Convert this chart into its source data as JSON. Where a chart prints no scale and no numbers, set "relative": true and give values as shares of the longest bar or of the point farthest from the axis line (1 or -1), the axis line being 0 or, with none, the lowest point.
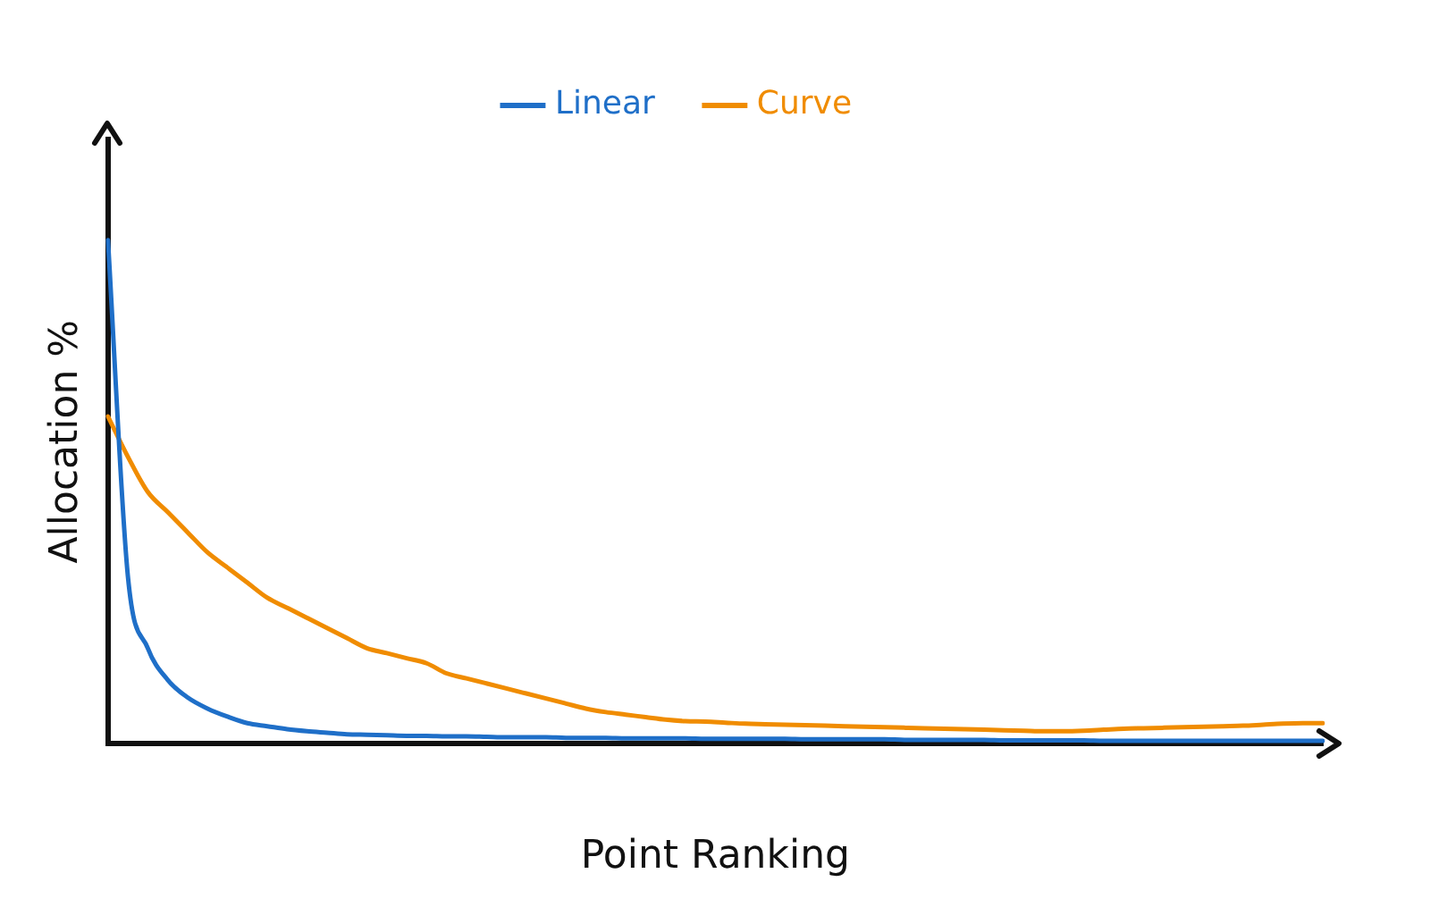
{
  "chart_data": {
    "type": "line",
    "relative": true,
    "xlabel": "Point Ranking",
    "ylabel": "Allocation %",
    "grid": false,
    "legend": "top right",
    "marker": "none",
    "line_style": "solid",
    "categories": [
      null,
      null,
      null,
      null,
      null,
      null,
      null,
      null,
      null,
      null,
      null,
      null,
      null,
      null,
      null,
      null,
      null,
      null,
      null,
      null,
      null,
      null,
      null,
      null,
      null,
      null,
      null,
      null,
      null,
      null,
      null,
      null,
      null,
      null,
      null,
      null,
      null,
      null,
      null,
      null,
      null,
      null,
      null,
      null,
      null,
      null,
      null,
      null,
      null,
      null,
      null,
      null,
      null,
      null,
      null,
      null,
      null,
      null,
      null,
      null,
      null,
      null
    ],
    "series": [
      {
        "name": "Linear",
        "color": "#1f6fc8",
        "values": [
          1.0,
          0.333,
          0.19,
          0.127,
          0.092,
          0.07,
          0.054,
          0.041,
          0.035,
          0.029,
          0.025,
          0.022,
          0.019,
          0.018,
          0.017,
          0.016,
          0.016,
          0.015,
          0.015,
          0.014,
          0.013,
          0.013,
          0.013,
          0.012,
          0.012,
          0.012,
          0.011,
          0.011,
          0.011,
          0.011,
          0.01,
          0.01,
          0.01,
          0.01,
          0.01,
          0.009,
          0.009,
          0.009,
          0.009,
          0.009,
          0.008,
          0.008,
          0.008,
          0.008,
          0.008,
          0.007,
          0.007,
          0.007,
          0.007,
          0.007,
          0.006,
          0.006,
          0.006,
          0.006,
          0.006,
          0.006,
          0.006,
          0.006,
          0.006,
          0.006,
          0.006,
          0.006
        ]
      },
      {
        "name": "Curve",
        "color": "#f08c00",
        "values": [
          0.65,
          0.57,
          0.5,
          0.46,
          0.42,
          0.38,
          0.35,
          0.32,
          0.29,
          0.27,
          0.25,
          0.23,
          0.21,
          0.19,
          0.18,
          0.17,
          0.16,
          0.14,
          0.13,
          0.12,
          0.11,
          0.1,
          0.09,
          0.08,
          0.07,
          0.063,
          0.058,
          0.053,
          0.048,
          0.045,
          0.044,
          0.042,
          0.04,
          0.039,
          0.038,
          0.037,
          0.036,
          0.035,
          0.034,
          0.033,
          0.032,
          0.031,
          0.03,
          0.029,
          0.028,
          0.027,
          0.026,
          0.025,
          0.025,
          0.026,
          0.028,
          0.03,
          0.031,
          0.032,
          0.033,
          0.034,
          0.035,
          0.036,
          0.038,
          0.04,
          0.041,
          0.041
        ]
      }
    ]
  }
}
